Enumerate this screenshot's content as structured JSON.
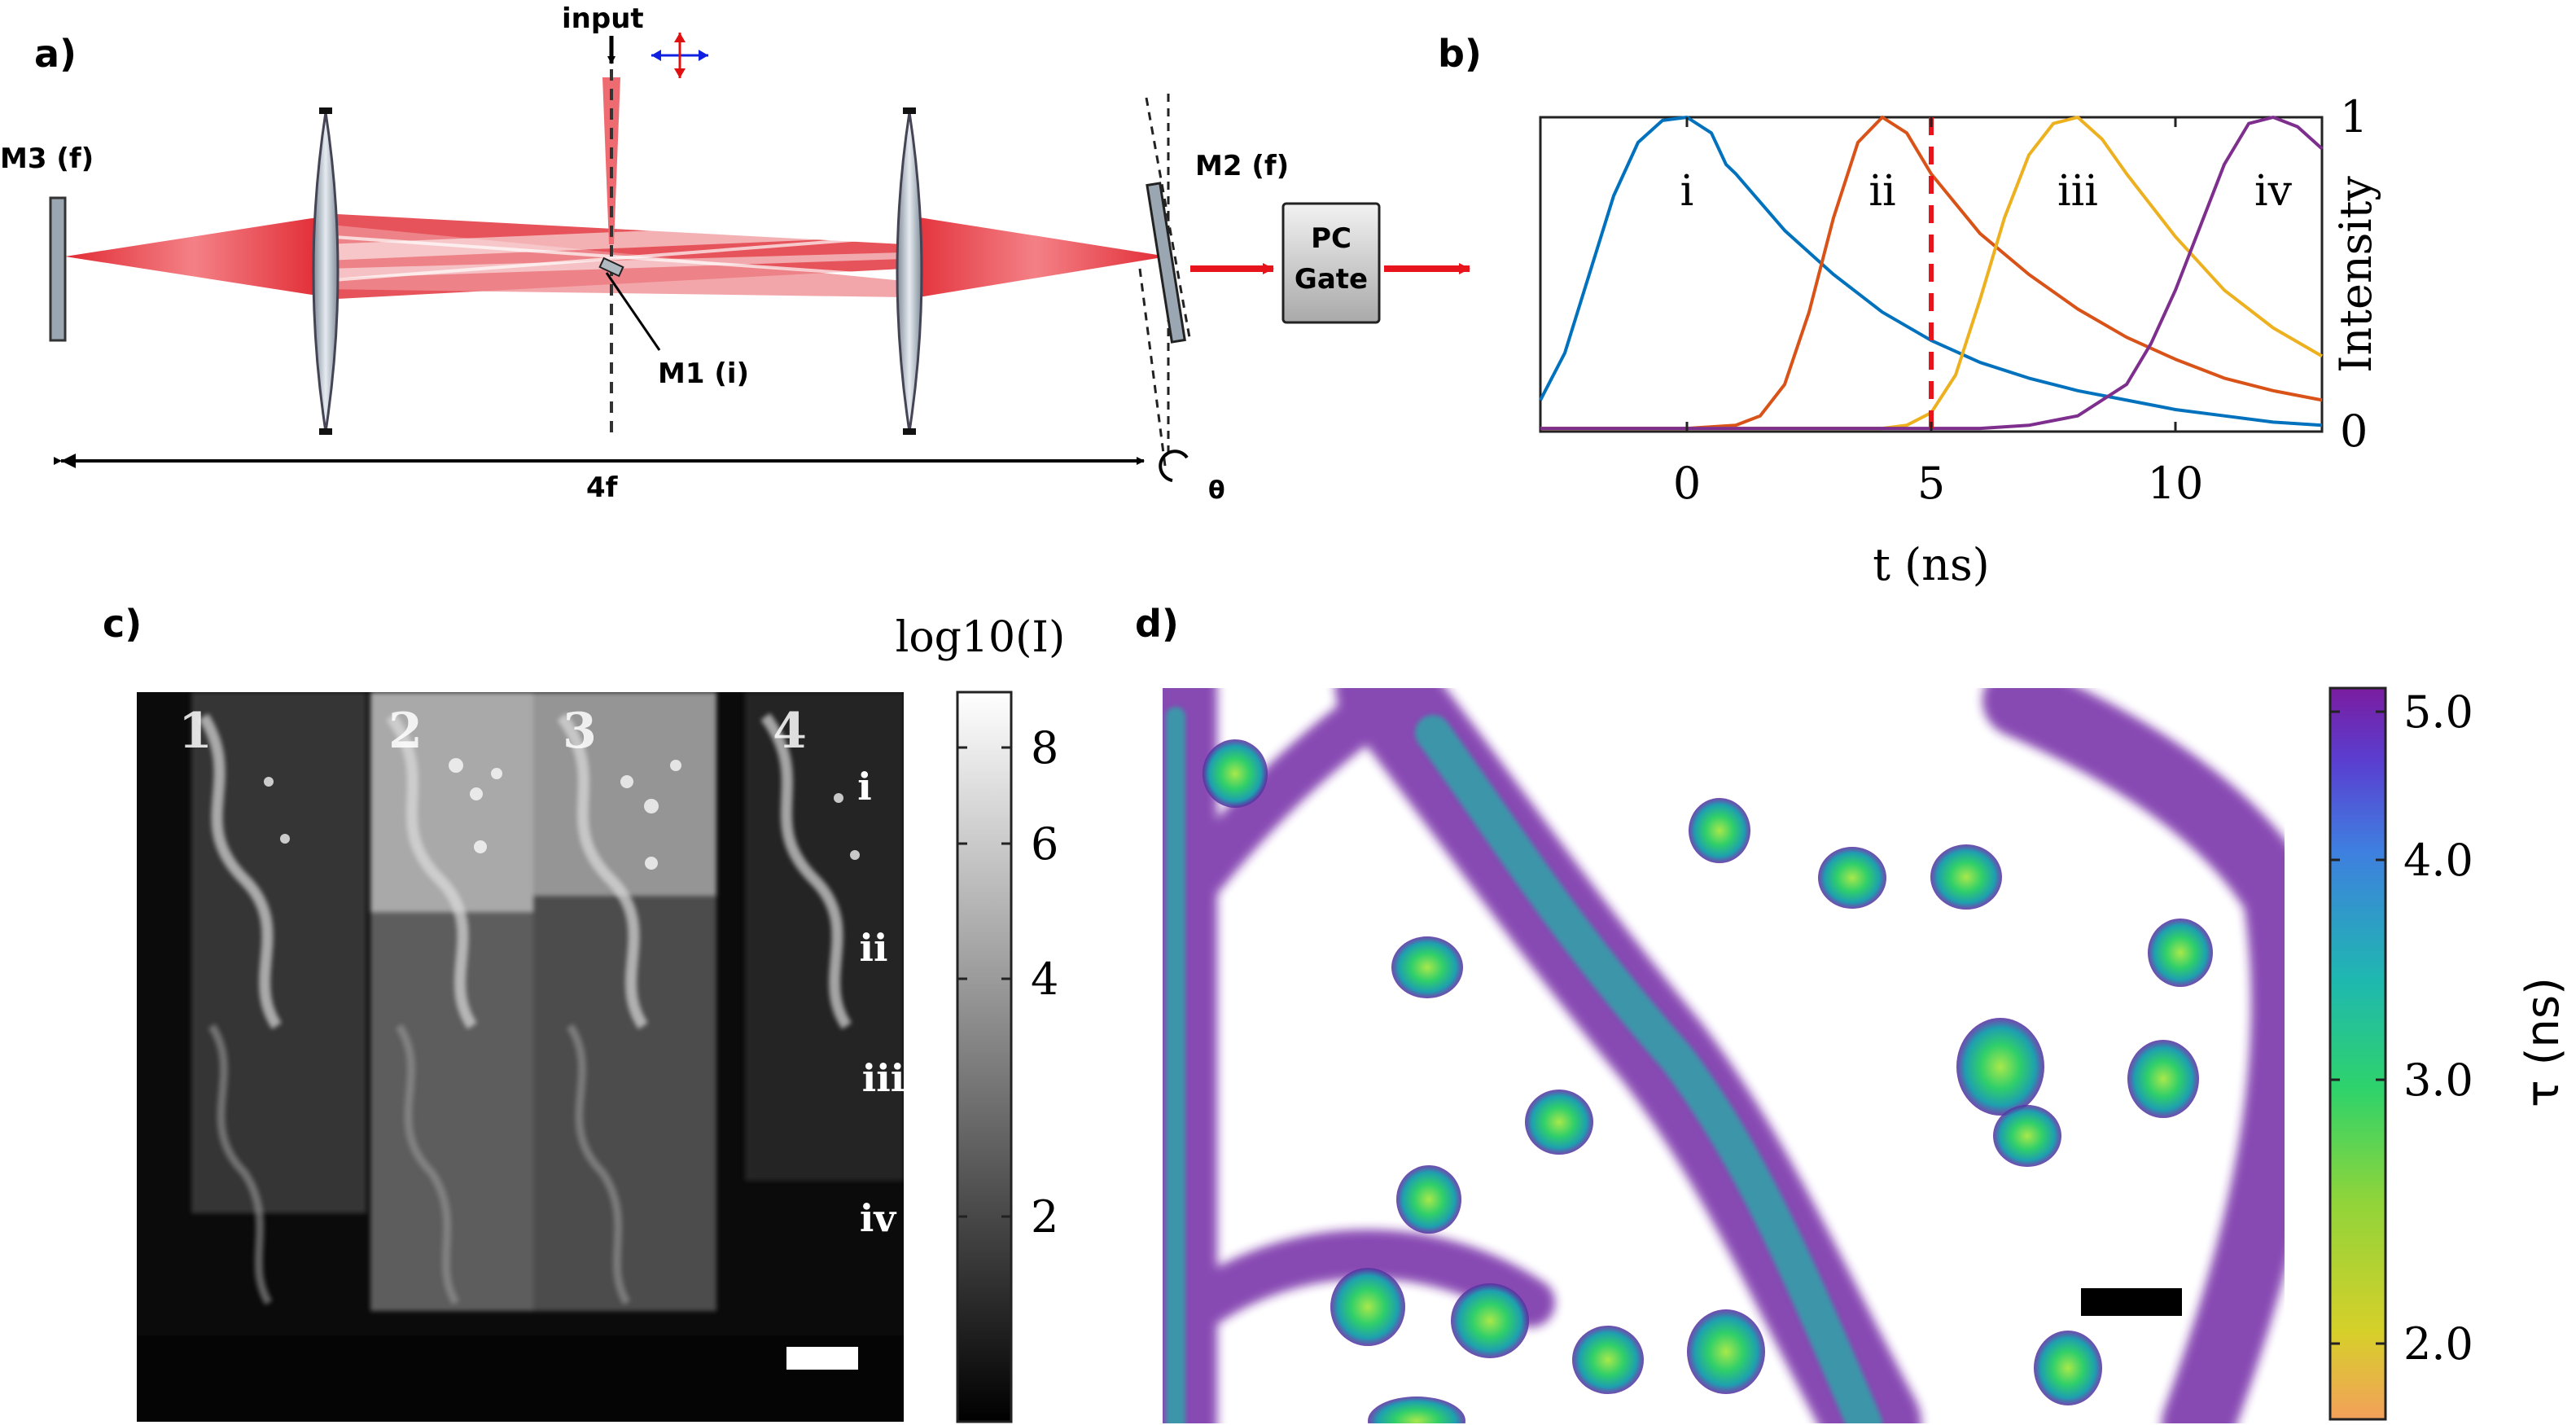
{
  "panels": {
    "a": {
      "label": "a)",
      "input_label": "input",
      "m3": "M3 (f)",
      "m2": "M2 (f)",
      "m1": "M1 (i)",
      "distance": "4f",
      "angle": "θ",
      "gate_line1": "PC",
      "gate_line2": "Gate"
    },
    "b": {
      "label": "b)"
    },
    "c": {
      "label": "c)",
      "colorbar_title": "log10(I)",
      "colorbar_ticks": [
        "8",
        "6",
        "4",
        "2"
      ],
      "columns": [
        "1",
        "2",
        "3",
        "4"
      ],
      "rows": [
        "i",
        "ii",
        "iii",
        "iv"
      ]
    },
    "d": {
      "label": "d)",
      "colorbar_label": "τ (ns)",
      "colorbar_ticks": [
        "5.0",
        "4.0",
        "3.0",
        "2.0"
      ]
    }
  },
  "chart_data": {
    "type": "line",
    "title": "",
    "xlabel": "t (ns)",
    "ylabel": "Intensity",
    "xlim": [
      -3,
      13
    ],
    "ylim": [
      0,
      1
    ],
    "xticks": [
      "0",
      "5",
      "10"
    ],
    "yticks": [
      "0",
      "1"
    ],
    "marker_x": 5,
    "series": [
      {
        "name": "i",
        "color": "#0072bd",
        "x": [
          -3,
          -2.5,
          -2,
          -1.5,
          -1,
          -0.5,
          0,
          0.5,
          0.8,
          1,
          1.5,
          2,
          3,
          4,
          5,
          6,
          7,
          8,
          9,
          10,
          11,
          12,
          13
        ],
        "y": [
          0.1,
          0.25,
          0.5,
          0.75,
          0.92,
          0.99,
          1.0,
          0.95,
          0.85,
          0.82,
          0.73,
          0.64,
          0.5,
          0.38,
          0.29,
          0.22,
          0.17,
          0.13,
          0.1,
          0.07,
          0.05,
          0.03,
          0.02
        ]
      },
      {
        "name": "ii",
        "color": "#d95319",
        "x": [
          -3,
          0,
          1,
          1.5,
          2,
          2.5,
          3,
          3.5,
          4,
          4.5,
          5,
          6,
          7,
          8,
          9,
          10,
          11,
          12,
          13
        ],
        "y": [
          0.01,
          0.01,
          0.02,
          0.05,
          0.15,
          0.38,
          0.68,
          0.92,
          1.0,
          0.95,
          0.82,
          0.63,
          0.5,
          0.39,
          0.3,
          0.23,
          0.17,
          0.13,
          0.1
        ]
      },
      {
        "name": "iii",
        "color": "#edb120",
        "x": [
          -3,
          4,
          4.5,
          5,
          5.5,
          6,
          6.5,
          7,
          7.5,
          8,
          8.5,
          9,
          10,
          11,
          12,
          13
        ],
        "y": [
          0.01,
          0.01,
          0.02,
          0.06,
          0.18,
          0.42,
          0.68,
          0.88,
          0.98,
          1.0,
          0.93,
          0.82,
          0.62,
          0.45,
          0.33,
          0.24
        ]
      },
      {
        "name": "iv",
        "color": "#7e2f8e",
        "x": [
          -3,
          6,
          7,
          8,
          9,
          9.5,
          10,
          10.5,
          11,
          11.5,
          12,
          12.5,
          13
        ],
        "y": [
          0.01,
          0.01,
          0.02,
          0.05,
          0.15,
          0.28,
          0.45,
          0.65,
          0.85,
          0.98,
          1.0,
          0.97,
          0.9
        ]
      }
    ]
  }
}
